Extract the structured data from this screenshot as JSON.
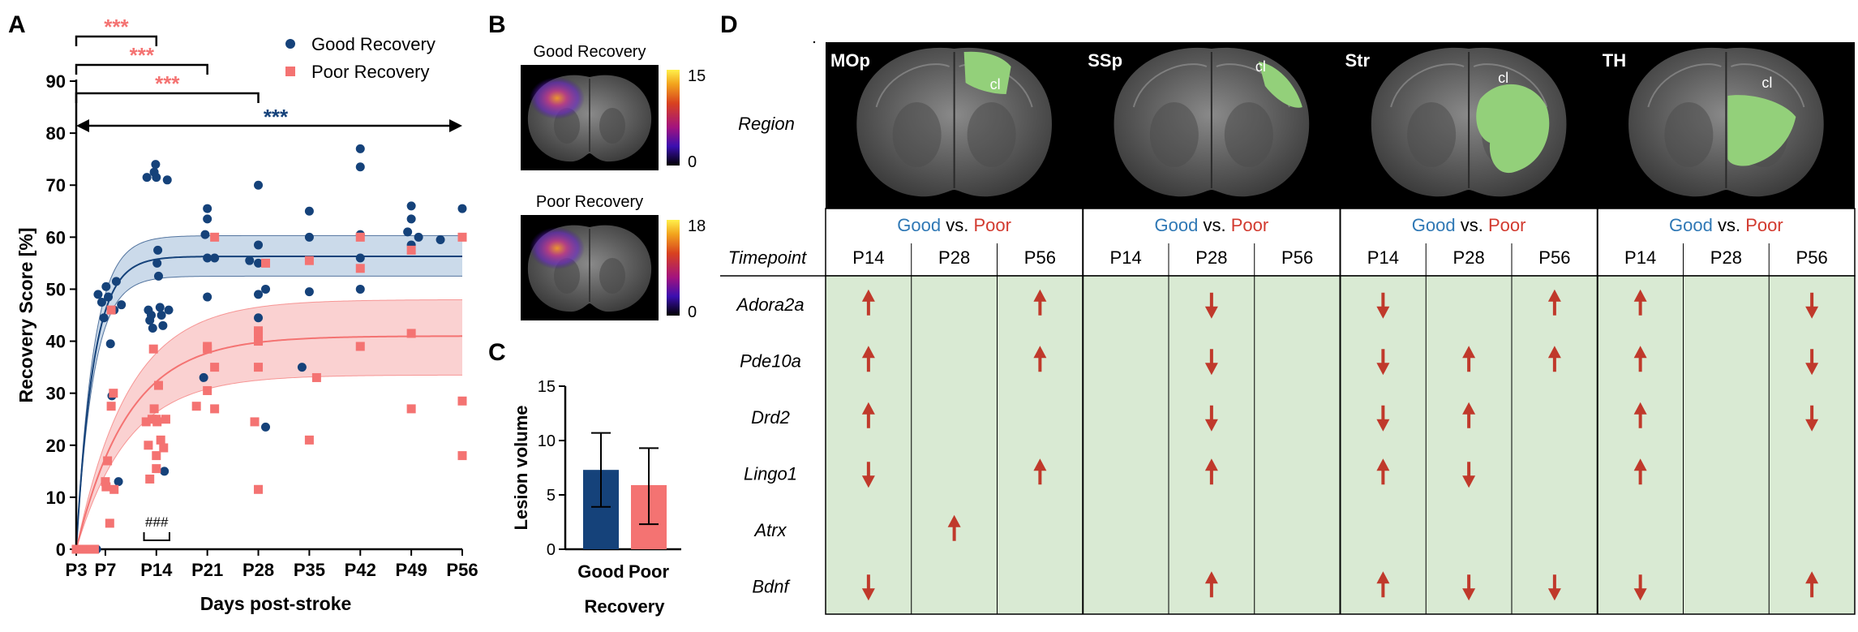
{
  "panels": {
    "A": "A",
    "B": "B",
    "C": "C",
    "D": "D"
  },
  "colors": {
    "good": "#15427a",
    "poor": "#f47372",
    "good_band": "#c2d3e6",
    "poor_band": "#f9c9c9",
    "sig_good": "#15427a",
    "sig_poor": "#f47372",
    "arrow": "#c0392b",
    "table_bg": "#d9ead3",
    "green_roi": "#93d07a",
    "good_text": "#2f78b5",
    "poor_text": "#d23a2f"
  },
  "chart_data": [
    {
      "panel": "A",
      "type": "scatter",
      "xlabel": "Days post-stroke",
      "ylabel": "Recovery Score [%]",
      "xlim": [
        3,
        56
      ],
      "ylim": [
        0,
        90
      ],
      "x_ticks": [
        3,
        7,
        14,
        21,
        28,
        35,
        42,
        49,
        56
      ],
      "x_tick_labels": [
        "P3",
        "P7",
        "P14",
        "P21",
        "P28",
        "P35",
        "P42",
        "P49",
        "P56"
      ],
      "y_ticks": [
        0,
        10,
        20,
        30,
        40,
        50,
        60,
        70,
        80,
        90
      ],
      "legend_placement": "top-right",
      "series": [
        {
          "name": "Good Recovery",
          "marker": "circle",
          "points": [
            [
              3,
              0
            ],
            [
              3.4,
              0
            ],
            [
              3.8,
              0
            ],
            [
              4.2,
              0
            ],
            [
              4.6,
              0
            ],
            [
              5,
              0
            ],
            [
              5.4,
              0
            ],
            [
              5.8,
              0
            ],
            [
              6,
              49
            ],
            [
              6.5,
              47.5
            ],
            [
              6.8,
              44.5
            ],
            [
              7.1,
              50.5
            ],
            [
              7.4,
              48.5
            ],
            [
              7.7,
              39.5
            ],
            [
              7.9,
              29.5
            ],
            [
              8.2,
              46
            ],
            [
              8.5,
              51.5
            ],
            [
              8.8,
              13
            ],
            [
              9.2,
              47
            ],
            [
              12.7,
              71.5
            ],
            [
              12.9,
              46
            ],
            [
              13.1,
              44
            ],
            [
              13.3,
              45
            ],
            [
              13.5,
              42.5
            ],
            [
              13.7,
              72.5
            ],
            [
              13.9,
              74
            ],
            [
              14,
              71.5
            ],
            [
              14.1,
              55
            ],
            [
              14.2,
              57.5
            ],
            [
              14.3,
              52.5
            ],
            [
              14.5,
              46.5
            ],
            [
              14.7,
              45
            ],
            [
              14.9,
              43
            ],
            [
              15.1,
              15
            ],
            [
              15.5,
              71
            ],
            [
              15.7,
              46
            ],
            [
              20.7,
              60.5
            ],
            [
              21,
              48.5
            ],
            [
              21,
              65.5
            ],
            [
              21,
              56
            ],
            [
              21,
              63.5
            ],
            [
              20.5,
              33
            ],
            [
              22,
              56
            ],
            [
              26.8,
              55.5
            ],
            [
              28,
              70
            ],
            [
              28,
              58.5
            ],
            [
              28,
              55
            ],
            [
              28,
              49
            ],
            [
              28,
              44.5
            ],
            [
              29,
              50
            ],
            [
              29,
              23.5
            ],
            [
              35,
              65
            ],
            [
              35,
              60
            ],
            [
              35,
              49.5
            ],
            [
              34,
              35
            ],
            [
              42,
              77
            ],
            [
              42,
              73.5
            ],
            [
              42,
              60.5
            ],
            [
              42,
              56
            ],
            [
              42,
              50
            ],
            [
              48.5,
              61
            ],
            [
              49,
              66
            ],
            [
              49,
              63.5
            ],
            [
              49,
              58.5
            ],
            [
              50,
              60
            ],
            [
              53,
              59.5
            ],
            [
              56,
              65.5
            ]
          ]
        },
        {
          "name": "Poor Recovery",
          "marker": "square",
          "points": [
            [
              3,
              0
            ],
            [
              3.5,
              0
            ],
            [
              4,
              0
            ],
            [
              4.5,
              0
            ],
            [
              5,
              0
            ],
            [
              5.5,
              0
            ],
            [
              7,
              13
            ],
            [
              7.1,
              12
            ],
            [
              7.3,
              17
            ],
            [
              7.6,
              5
            ],
            [
              7.8,
              46
            ],
            [
              7.8,
              27.5
            ],
            [
              8.1,
              30
            ],
            [
              8.2,
              11.5
            ],
            [
              12.6,
              24.5
            ],
            [
              12.9,
              20
            ],
            [
              13.1,
              13.5
            ],
            [
              13.4,
              25
            ],
            [
              13.6,
              38.5
            ],
            [
              13.7,
              27
            ],
            [
              14,
              18
            ],
            [
              14,
              25
            ],
            [
              14,
              15.5
            ],
            [
              14.1,
              24.5
            ],
            [
              14.3,
              31.5
            ],
            [
              14.6,
              21
            ],
            [
              15,
              19.5
            ],
            [
              15.3,
              25
            ],
            [
              19.5,
              27.5
            ],
            [
              21,
              39
            ],
            [
              21,
              30.5
            ],
            [
              21,
              38.5
            ],
            [
              22,
              60
            ],
            [
              22,
              27
            ],
            [
              22,
              35
            ],
            [
              27.5,
              24.5
            ],
            [
              28,
              41.5
            ],
            [
              28,
              42
            ],
            [
              28,
              40
            ],
            [
              28,
              11.5
            ],
            [
              29,
              55
            ],
            [
              28,
              35
            ],
            [
              35,
              55.5
            ],
            [
              35,
              21
            ],
            [
              36,
              33
            ],
            [
              42,
              60
            ],
            [
              42,
              54
            ],
            [
              42,
              39
            ],
            [
              49,
              57.5
            ],
            [
              49,
              41.5
            ],
            [
              49,
              27
            ],
            [
              56,
              60
            ],
            [
              56,
              28.5
            ],
            [
              56,
              18
            ]
          ]
        }
      ],
      "fits": [
        {
          "series": "Good Recovery",
          "plateau": 56.3,
          "k": 0.42,
          "band_low": 52.5,
          "band_high": 60.3
        },
        {
          "series": "Poor Recovery",
          "plateau": 41.0,
          "k": 0.14,
          "band_low": 33.5,
          "band_high": 48.0
        }
      ],
      "annotations": {
        "sig_poor_14": "***",
        "sig_poor_21": "***",
        "sig_poor_28": "***",
        "sig_good_all": "***",
        "hash_label": "###"
      }
    },
    {
      "panel": "C",
      "type": "bar",
      "xlabel": "Recovery",
      "ylabel": "Lesion volume",
      "categories": [
        "Good",
        "Poor"
      ],
      "values": [
        7.3,
        5.9
      ],
      "error_low": [
        3.9,
        2.3
      ],
      "error_high": [
        10.7,
        9.3
      ],
      "ylim": [
        0,
        15
      ],
      "y_ticks": [
        0,
        5,
        10,
        15
      ]
    },
    {
      "panel": "B",
      "type": "heatmap",
      "maps": [
        {
          "title": "Good Recovery",
          "colorbar_max": "15",
          "colorbar_min": "0"
        },
        {
          "title": "Poor Recovery",
          "colorbar_max": "18",
          "colorbar_min": "0"
        }
      ]
    },
    {
      "panel": "D",
      "type": "table",
      "region_label": "Region",
      "timepoint_label": "Timepoint",
      "cl_label": "cl",
      "comparison": {
        "good": "Good",
        "vs": " vs. ",
        "poor": "Poor"
      },
      "regions": [
        "MOp",
        "SSp",
        "Str",
        "TH"
      ],
      "timepoints": [
        "P14",
        "P28",
        "P56"
      ],
      "genes": [
        "Adora2a",
        "Pde10a",
        "Drd2",
        "Lingo1",
        "Atrx",
        "Bdnf"
      ],
      "cells": [
        [
          "up",
          "",
          "up",
          "",
          "down",
          "",
          "down",
          "",
          "up",
          "up",
          "",
          "down"
        ],
        [
          "up",
          "",
          "up",
          "",
          "down",
          "",
          "down",
          "up",
          "up",
          "up",
          "",
          "down"
        ],
        [
          "up",
          "",
          "",
          "",
          "down",
          "",
          "down",
          "up",
          "",
          "up",
          "",
          "down"
        ],
        [
          "down",
          "",
          "up",
          "",
          "up",
          "",
          "up",
          "down",
          "",
          "up",
          "",
          ""
        ],
        [
          "",
          "up",
          "",
          "",
          "",
          "",
          "",
          "",
          "",
          "",
          "",
          ""
        ],
        [
          "down",
          "",
          "",
          "",
          "up",
          "",
          "up",
          "down",
          "down",
          "down",
          "",
          "up"
        ]
      ]
    }
  ]
}
